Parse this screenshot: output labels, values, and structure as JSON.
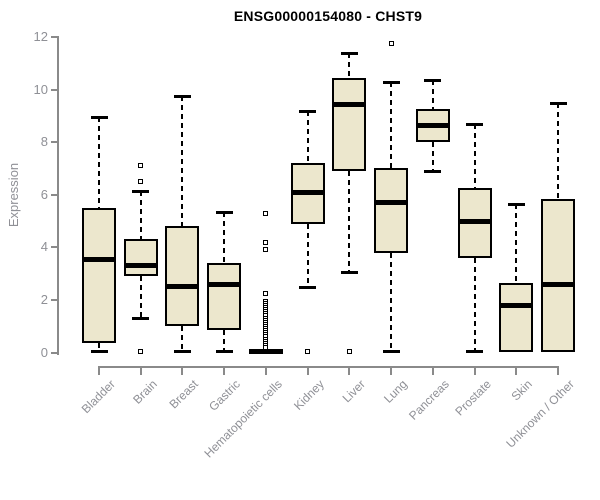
{
  "page": {
    "background": "#ffffff"
  },
  "chart_data": {
    "type": "boxplot",
    "title": "ENSG00000154080 - CHST9",
    "ylabel": "Expression",
    "xlabel": "",
    "ylim": [
      0,
      12
    ],
    "yticks": [
      0,
      2,
      4,
      6,
      8,
      10,
      12
    ],
    "grid": false,
    "legend": "none",
    "colors": {
      "box_fill": "#ece7cd",
      "box_stroke": "#000000",
      "median": "#000000",
      "whisker": "#000000",
      "axis": "#8a8a8a",
      "tick_text": "#8f9096",
      "title_text": "#000000"
    },
    "categories": [
      "Bladder",
      "Brain",
      "Breast",
      "Gastric",
      "Hematopoietic cells",
      "Kidney",
      "Liver",
      "Lung",
      "Pancreas",
      "Prostate",
      "Skin",
      "Unknown / Other"
    ],
    "boxes": [
      {
        "category": "Bladder",
        "low": 0.05,
        "q1": 0.35,
        "median": 3.55,
        "q3": 5.5,
        "high": 8.95,
        "outliers": []
      },
      {
        "category": "Brain",
        "low": 1.3,
        "q1": 2.9,
        "median": 3.3,
        "q3": 4.3,
        "high": 6.15,
        "outliers": [
          7.1,
          6.5,
          0.02
        ]
      },
      {
        "category": "Breast",
        "low": 0.05,
        "q1": 1.0,
        "median": 2.5,
        "q3": 4.8,
        "high": 9.75,
        "outliers": []
      },
      {
        "category": "Gastric",
        "low": 0.05,
        "q1": 0.85,
        "median": 2.6,
        "q3": 3.4,
        "high": 5.35,
        "outliers": []
      },
      {
        "category": "Hematopoietic cells",
        "low": 0.0,
        "q1": 0.0,
        "median": 0.05,
        "q3": 0.12,
        "high": 0.12,
        "outliers": [
          5.3,
          4.2,
          3.9,
          2.25,
          1.95,
          1.87,
          1.79,
          1.71,
          1.63,
          1.55,
          1.47,
          1.39,
          1.31,
          1.23,
          1.15,
          1.07,
          0.99,
          0.91,
          0.83,
          0.75,
          0.67,
          0.59,
          0.51,
          0.43,
          0.35,
          0.27,
          0.2
        ]
      },
      {
        "category": "Kidney",
        "low": 2.5,
        "q1": 4.9,
        "median": 6.1,
        "q3": 7.2,
        "high": 9.2,
        "outliers": [
          0.02
        ]
      },
      {
        "category": "Liver",
        "low": 3.05,
        "q1": 6.9,
        "median": 9.45,
        "q3": 10.45,
        "high": 11.4,
        "outliers": [
          0.02
        ]
      },
      {
        "category": "Lung",
        "low": 0.05,
        "q1": 3.8,
        "median": 5.7,
        "q3": 7.0,
        "high": 10.3,
        "outliers": [
          11.75
        ]
      },
      {
        "category": "Pancreas",
        "low": 6.9,
        "q1": 8.0,
        "median": 8.65,
        "q3": 9.25,
        "high": 10.35,
        "outliers": []
      },
      {
        "category": "Prostate",
        "low": 0.05,
        "q1": 3.6,
        "median": 5.0,
        "q3": 6.25,
        "high": 8.7,
        "outliers": []
      },
      {
        "category": "Skin",
        "low": 0.02,
        "q1": 0.02,
        "median": 1.8,
        "q3": 2.65,
        "high": 5.65,
        "outliers": []
      },
      {
        "category": "Unknown / Other",
        "low": 0.02,
        "q1": 0.02,
        "median": 2.6,
        "q3": 5.85,
        "high": 9.5,
        "outliers": []
      }
    ]
  }
}
